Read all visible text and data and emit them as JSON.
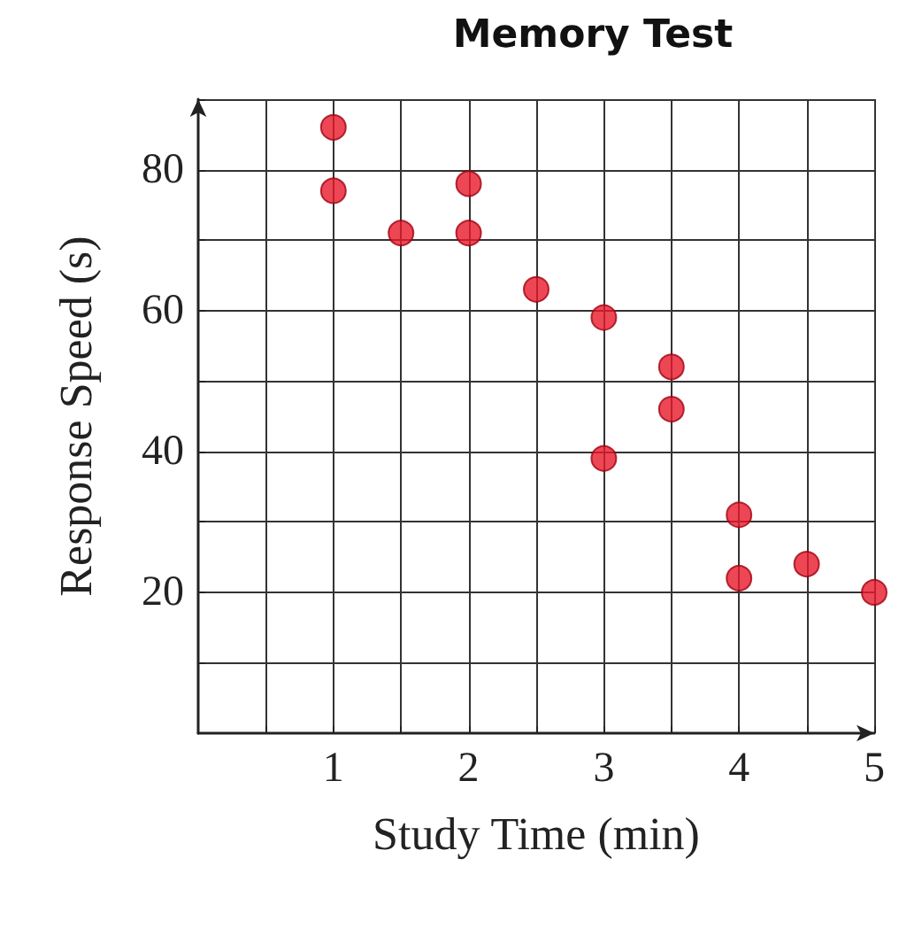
{
  "chart_data": {
    "type": "scatter",
    "title": "Memory Test",
    "xlabel": "Study Time (min)",
    "ylabel": "Response Speed (s)",
    "x": [
      1,
      1,
      1.5,
      2,
      2,
      2.5,
      3,
      3,
      3.5,
      3.5,
      4,
      4,
      4.5,
      5
    ],
    "series": [
      {
        "color": "#e8192c",
        "values": [
          86,
          77,
          71,
          78,
          71,
          63,
          59,
          39,
          52,
          46,
          31,
          22,
          24,
          20
        ]
      }
    ],
    "xlim": [
      0,
      5
    ],
    "xticks": [
      {
        "value": 0.5,
        "label": null
      },
      1,
      {
        "value": 1.5,
        "label": null
      },
      2,
      {
        "value": 2.5,
        "label": null
      },
      3,
      {
        "value": 3.5,
        "label": null
      },
      4,
      {
        "value": 4.5,
        "label": null
      },
      5
    ],
    "ylim": [
      0,
      90
    ],
    "yticks": [
      {
        "value": 10,
        "label": null
      },
      20,
      {
        "value": 30,
        "label": null
      },
      40,
      {
        "value": 50,
        "label": null
      },
      60,
      {
        "value": 70,
        "label": null
      },
      80,
      {
        "value": 90,
        "label": null
      }
    ],
    "grid": true,
    "marker": "circle"
  }
}
